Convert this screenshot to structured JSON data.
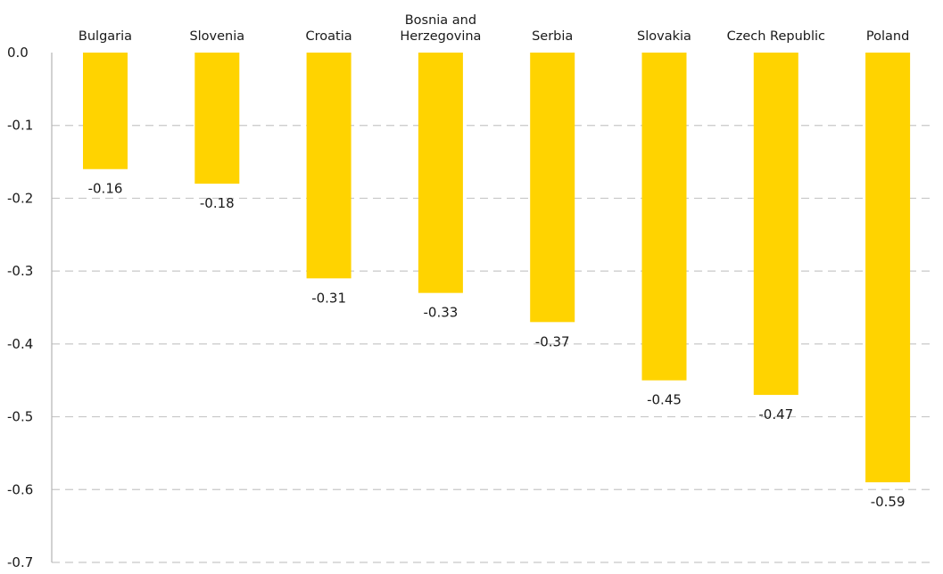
{
  "chart_data": {
    "type": "bar",
    "orientation": "vertical",
    "categories": [
      "Bulgaria",
      "Slovenia",
      "Croatia",
      "Bosnia and Herzegovina",
      "Serbia",
      "Slovakia",
      "Czech Republic",
      "Poland"
    ],
    "category_label_lines": [
      [
        "Bulgaria"
      ],
      [
        "Slovenia"
      ],
      [
        "Croatia"
      ],
      [
        "Bosnia and",
        "Herzegovina"
      ],
      [
        "Serbia"
      ],
      [
        "Slovakia"
      ],
      [
        "Czech Republic"
      ],
      [
        "Poland"
      ]
    ],
    "values": [
      -0.16,
      -0.18,
      -0.31,
      -0.33,
      -0.37,
      -0.45,
      -0.47,
      -0.59
    ],
    "data_labels": [
      "-0.16",
      "-0.18",
      "-0.31",
      "-0.33",
      "-0.37",
      "-0.45",
      "-0.47",
      "-0.59"
    ],
    "y_ticks": [
      0.0,
      -0.1,
      -0.2,
      -0.3,
      -0.4,
      -0.5,
      -0.6,
      -0.7
    ],
    "y_tick_labels": [
      "0.0",
      "-0.1",
      "-0.2",
      "-0.3",
      "-0.4",
      "-0.5",
      "-0.6",
      "-0.7"
    ],
    "ylim": [
      -0.7,
      0.0
    ],
    "category_axis_position": "top",
    "grid": true,
    "legend": "none",
    "bar_color": "#FFD300",
    "title": "",
    "xlabel": "",
    "ylabel": ""
  }
}
